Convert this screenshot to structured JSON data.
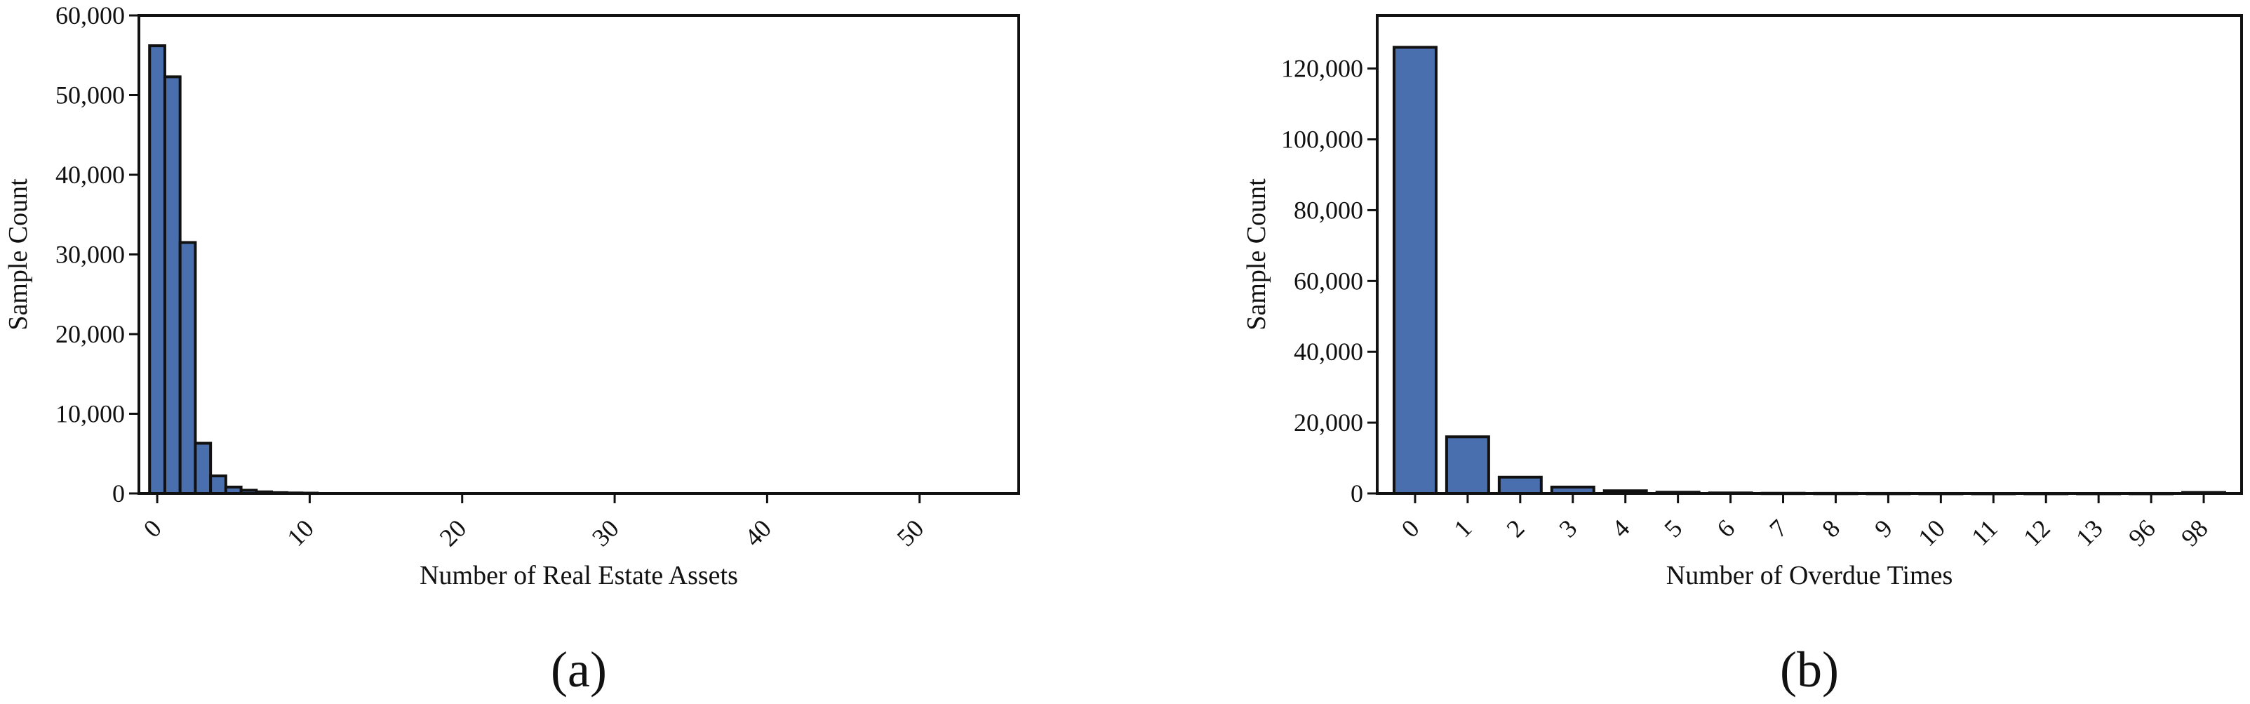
{
  "chart_data": [
    {
      "type": "bar",
      "panel_label": "(a)",
      "xlabel": "Number of Real Estate Assets",
      "ylabel": "Sample Count",
      "xlim": [
        -1.2,
        56.5
      ],
      "ylim": [
        0,
        60000
      ],
      "x_ticks": [
        0,
        10,
        20,
        30,
        40,
        50
      ],
      "y_ticks": [
        0,
        10000,
        20000,
        30000,
        40000,
        50000,
        60000
      ],
      "y_tick_labels": [
        "0",
        "10,000",
        "20,000",
        "30,000",
        "40,000",
        "50,000",
        "60,000"
      ],
      "bar_width": 1.0,
      "x": [
        0,
        1,
        2,
        3,
        4,
        5,
        6,
        7,
        8,
        9,
        10
      ],
      "values": [
        56200,
        52300,
        31500,
        6300,
        2200,
        800,
        400,
        200,
        100,
        60,
        40
      ],
      "color": "#4a6fae",
      "grid": false
    },
    {
      "type": "bar",
      "panel_label": "(b)",
      "xlabel": "Number of Overdue Times",
      "ylabel": "Sample Count",
      "ylim": [
        0,
        135000
      ],
      "categories": [
        "0",
        "1",
        "2",
        "3",
        "4",
        "5",
        "6",
        "7",
        "8",
        "9",
        "10",
        "11",
        "12",
        "13",
        "96",
        "98"
      ],
      "y_ticks": [
        0,
        20000,
        40000,
        60000,
        80000,
        100000,
        120000
      ],
      "y_tick_labels": [
        "0",
        "20,000",
        "40,000",
        "60,000",
        "80,000",
        "100,000",
        "120,000"
      ],
      "values": [
        126000,
        16000,
        4600,
        1800,
        750,
        340,
        140,
        54,
        25,
        12,
        4,
        1,
        2,
        1,
        5,
        264
      ],
      "color": "#4a6fae",
      "grid": false
    }
  ]
}
